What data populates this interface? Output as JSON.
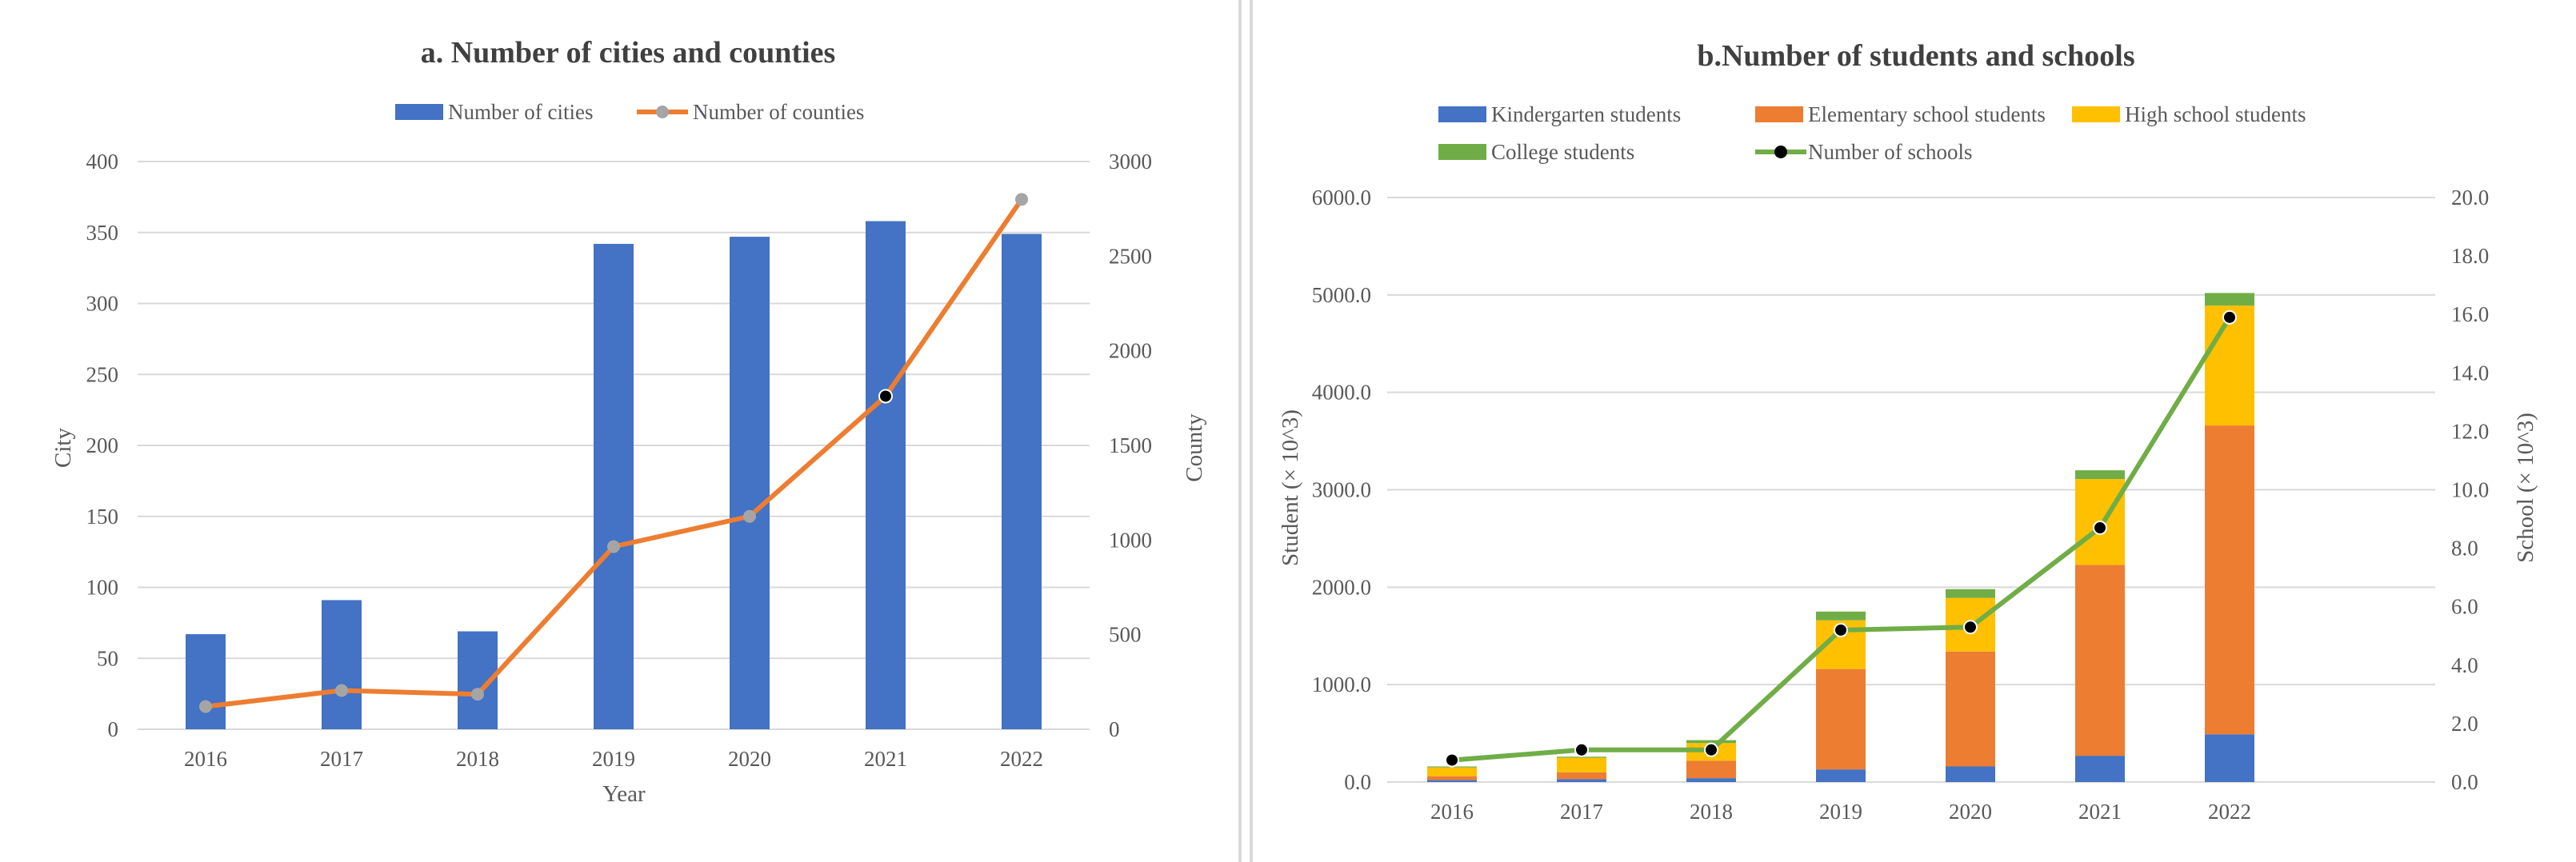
{
  "chart_data": [
    {
      "type": "bar",
      "title": "a. Number of cities and counties",
      "xlabel": "Year",
      "ylabel": "City",
      "y2label": "County",
      "categories": [
        "2016",
        "2017",
        "2018",
        "2019",
        "2020",
        "2021",
        "2022"
      ],
      "ylim": [
        0,
        400
      ],
      "y2lim": [
        0,
        3000
      ],
      "yticks": [
        "0",
        "50",
        "100",
        "150",
        "200",
        "250",
        "300",
        "350",
        "400"
      ],
      "y2ticks": [
        "0",
        "500",
        "1000",
        "1500",
        "2000",
        "2500",
        "3000"
      ],
      "grid": true,
      "legend_position": "top",
      "series": [
        {
          "name": "Number of cities",
          "type": "bar",
          "axis": "left",
          "color": "#4472c4",
          "values": [
            67,
            91,
            69,
            342,
            347,
            358,
            349
          ]
        },
        {
          "name": "Number of counties",
          "type": "line",
          "axis": "right",
          "color": "#ed7d31",
          "marker_color": "#a5a5a5",
          "values": [
            120,
            205,
            185,
            965,
            1125,
            1760,
            2800
          ]
        }
      ]
    },
    {
      "type": "bar",
      "stacked": true,
      "title": "b.Number of students and schools",
      "xlabel": "",
      "ylabel": "Student (× 10^3)",
      "y2label": "School (× 10^3)",
      "categories": [
        "2016",
        "2017",
        "2018",
        "2019",
        "2020",
        "2021",
        "2022"
      ],
      "ylim": [
        0,
        6000
      ],
      "y2lim": [
        0,
        20
      ],
      "yticks": [
        "0.0",
        "1000.0",
        "2000.0",
        "3000.0",
        "4000.0",
        "5000.0",
        "6000.0"
      ],
      "y2ticks": [
        "0.0",
        "2.0",
        "4.0",
        "6.0",
        "8.0",
        "10.0",
        "12.0",
        "14.0",
        "16.0",
        "18.0",
        "20.0"
      ],
      "grid": true,
      "legend_position": "top",
      "series": [
        {
          "name": "Kindergarten students",
          "type": "bar",
          "axis": "left",
          "color": "#4472c4",
          "values": [
            20,
            30,
            40,
            130,
            160,
            270,
            490
          ]
        },
        {
          "name": "Elementary school students",
          "type": "bar",
          "axis": "left",
          "color": "#ed7d31",
          "values": [
            40,
            70,
            180,
            1030,
            1180,
            1960,
            3170
          ]
        },
        {
          "name": "High school students",
          "type": "bar",
          "axis": "left",
          "color": "#ffc000",
          "values": [
            90,
            150,
            180,
            500,
            550,
            880,
            1230
          ]
        },
        {
          "name": "College students",
          "type": "bar",
          "axis": "left",
          "color": "#70ad47",
          "values": [
            10,
            10,
            30,
            90,
            90,
            90,
            130
          ]
        },
        {
          "name": "Number of schools",
          "type": "line",
          "axis": "right",
          "color": "#70ad47",
          "marker_color": "#000000",
          "values": [
            0.75,
            1.1,
            1.1,
            5.2,
            5.3,
            8.7,
            15.9
          ]
        }
      ]
    }
  ]
}
